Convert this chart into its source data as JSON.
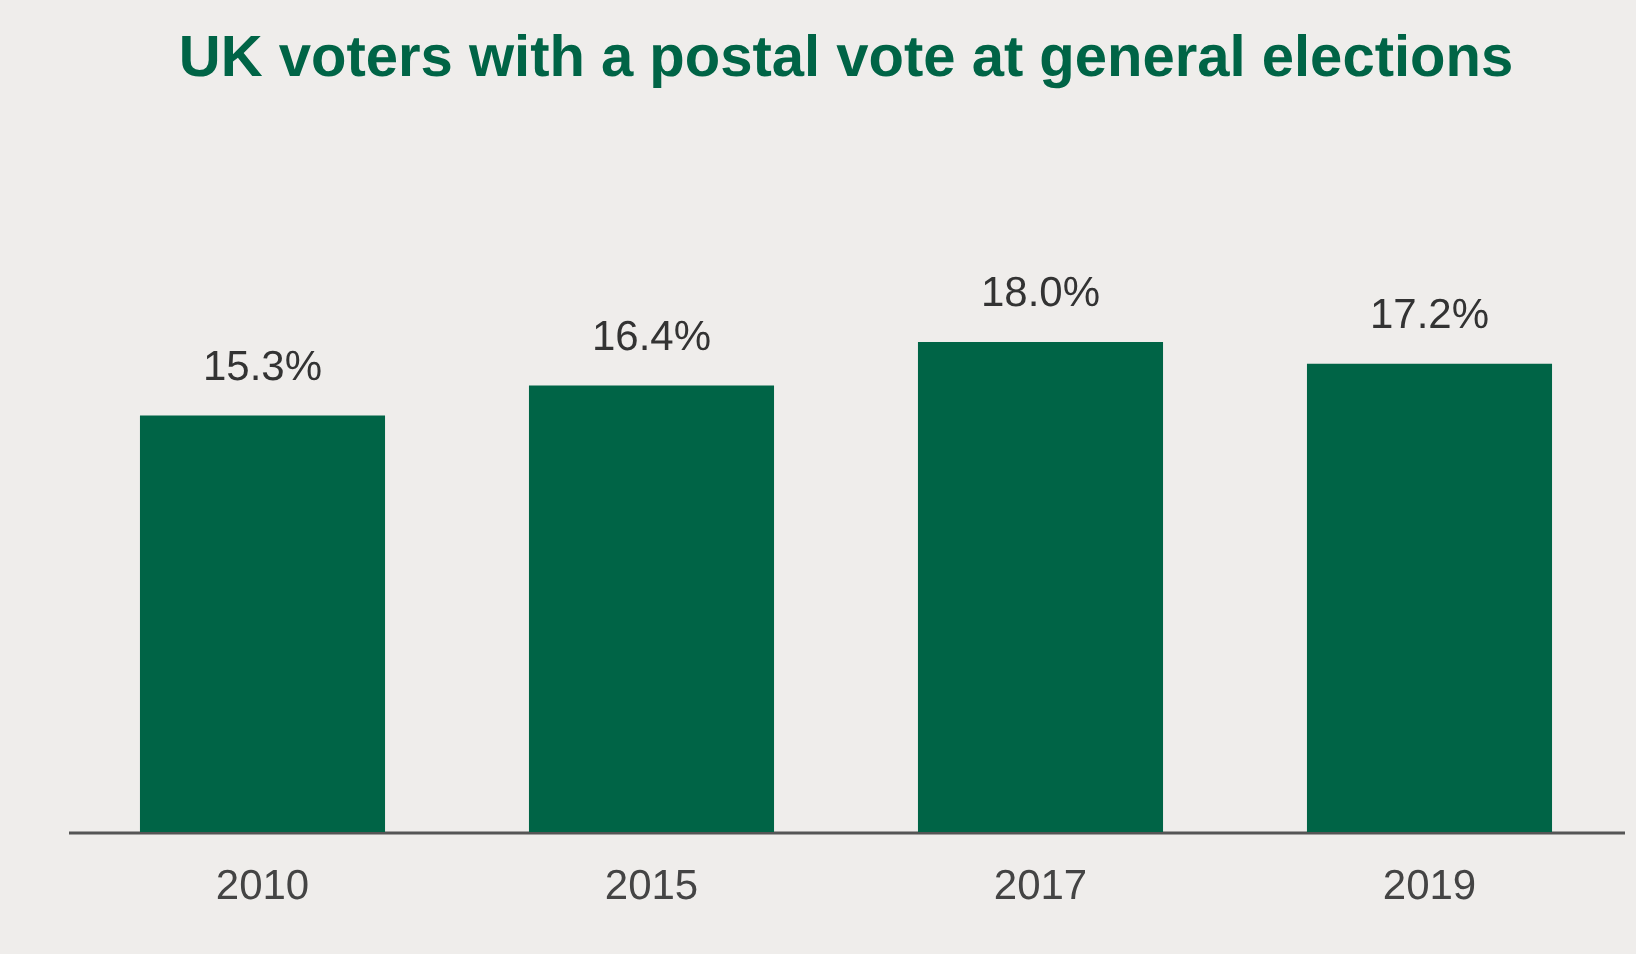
{
  "chart_data": {
    "type": "bar",
    "title": "UK voters with a postal vote at general elections",
    "categories": [
      "2010",
      "2015",
      "2017",
      "2019"
    ],
    "values": [
      15.3,
      16.4,
      18.0,
      17.2
    ],
    "value_labels": [
      "15.3%",
      "16.4%",
      "18.0%",
      "17.2%"
    ],
    "color": "#006446"
  }
}
